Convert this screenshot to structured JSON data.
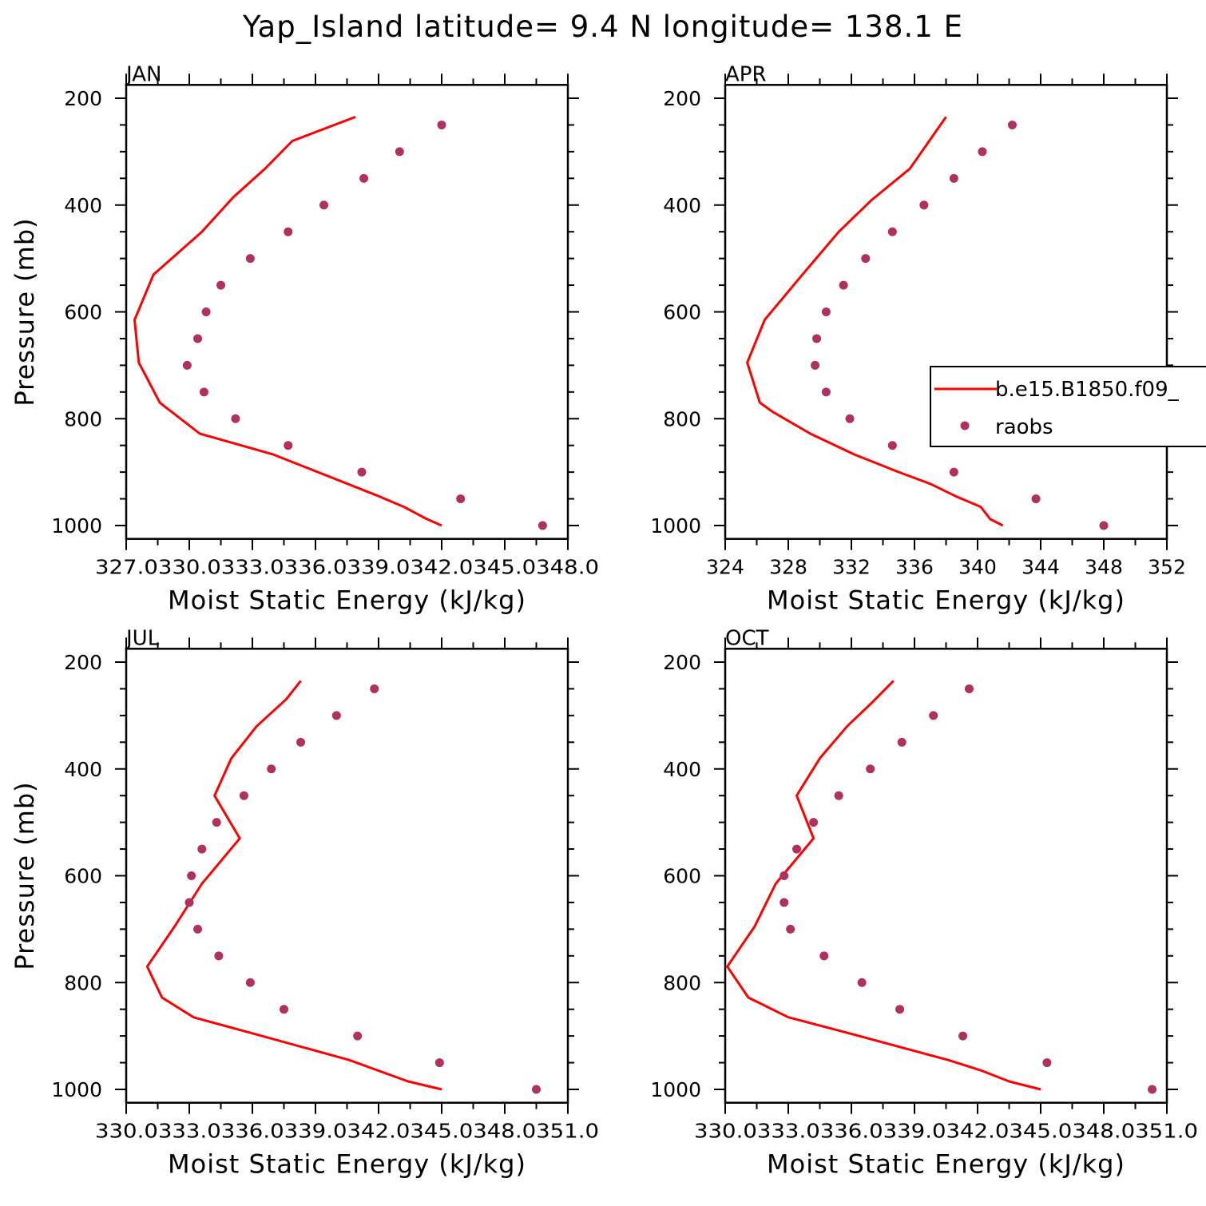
{
  "figure": {
    "title": "Yap_Island  latitude= 9.4 N longitude= 138.1 E"
  },
  "legend": {
    "model_label": "b.e15.B1850.f09_",
    "obs_label": "raobs",
    "model_color": "#ff0000",
    "obs_color": "#b03060"
  },
  "chart_data": [
    {
      "type": "line",
      "panel": "JAN",
      "xlabel": "Moist Static Energy (kJ/kg)",
      "ylabel": "Pressure (mb)",
      "xlim": [
        327,
        348
      ],
      "ylim": [
        1000,
        200
      ],
      "y_reversed": true,
      "y_ticks": [
        200,
        400,
        600,
        800,
        1000
      ],
      "x_ticks": [
        327,
        330,
        333,
        336,
        339,
        342,
        345,
        348
      ],
      "x_tick_labels": [
        "327.0",
        "330.0",
        "333.0",
        "336.0",
        "339.0",
        "342.0",
        "345.0",
        "348.0"
      ],
      "x_tick_text": "327.0330.0333.0336.0339.0342.0345.0348.0",
      "series": [
        {
          "name": "b.e15.B1850.f09_",
          "style": "line",
          "x": [
            342.0,
            341.3,
            340.2,
            339.0,
            334.0,
            330.5,
            328.6,
            327.6,
            327.4,
            328.3,
            330.6,
            332.1,
            333.6,
            334.9,
            337.9
          ],
          "y": [
            1000,
            988,
            965,
            945,
            867,
            828,
            770,
            695,
            615,
            530,
            450,
            385,
            332,
            280,
            235
          ]
        },
        {
          "name": "raobs",
          "style": "points",
          "x": [
            346.8,
            342.9,
            338.2,
            334.7,
            332.2,
            330.7,
            329.9,
            330.4,
            330.8,
            331.5,
            332.9,
            334.7,
            336.4,
            338.3,
            340.0,
            342.0
          ],
          "y": [
            1000,
            950,
            900,
            850,
            800,
            750,
            700,
            650,
            600,
            550,
            500,
            450,
            400,
            350,
            300,
            250
          ]
        }
      ]
    },
    {
      "type": "line",
      "panel": "APR",
      "xlabel": "Moist Static Energy (kJ/kg)",
      "ylabel": "",
      "xlim": [
        324,
        352
      ],
      "ylim": [
        1000,
        200
      ],
      "y_reversed": true,
      "y_ticks": [
        200,
        400,
        600,
        800,
        1000
      ],
      "x_ticks": [
        324,
        328,
        332,
        336,
        340,
        344,
        348,
        352
      ],
      "x_tick_labels": [
        "324",
        "328",
        "332",
        "336",
        "340",
        "344",
        "348",
        "352"
      ],
      "series": [
        {
          "name": "b.e15.B1850.f09_",
          "style": "line",
          "x": [
            341.6,
            340.8,
            340.2,
            338.6,
            337.0,
            335.0,
            332.2,
            329.4,
            327.0,
            326.2,
            325.4,
            326.5,
            328.9,
            331.2,
            333.3,
            335.7,
            338.0
          ],
          "y": [
            1000,
            988,
            965,
            945,
            922,
            900,
            867,
            828,
            787,
            770,
            695,
            615,
            530,
            450,
            390,
            332,
            235
          ]
        },
        {
          "name": "raobs",
          "style": "points",
          "x": [
            348.0,
            343.7,
            338.5,
            334.6,
            331.9,
            330.4,
            329.7,
            329.8,
            330.4,
            331.5,
            332.9,
            334.6,
            336.6,
            338.5,
            340.3,
            342.2
          ],
          "y": [
            1000,
            950,
            900,
            850,
            800,
            750,
            700,
            650,
            600,
            550,
            500,
            450,
            400,
            350,
            300,
            250
          ]
        }
      ]
    },
    {
      "type": "line",
      "panel": "JUL",
      "xlabel": "Moist Static Energy (kJ/kg)",
      "ylabel": "Pressure (mb)",
      "xlim": [
        330,
        351
      ],
      "ylim": [
        1000,
        200
      ],
      "y_reversed": true,
      "y_ticks": [
        200,
        400,
        600,
        800,
        1000
      ],
      "x_ticks": [
        330,
        333,
        336,
        339,
        342,
        345,
        348,
        351
      ],
      "x_tick_labels": [
        "330.0",
        "333.0",
        "336.0",
        "339.0",
        "342.0",
        "345.0",
        "348.0",
        "351.0"
      ],
      "x_tick_text": "330.0333.0336.0339.0342.0345.0348.0351.0",
      "series": [
        {
          "name": "b.e15.B1850.f09_",
          "style": "line",
          "x": [
            345.0,
            343.4,
            342.0,
            340.6,
            336.0,
            333.2,
            331.7,
            331.0,
            332.3,
            333.6,
            335.4,
            334.2,
            335.0,
            336.2,
            337.6,
            338.3
          ],
          "y": [
            1000,
            985,
            965,
            945,
            895,
            865,
            828,
            770,
            695,
            615,
            530,
            450,
            380,
            320,
            270,
            235
          ]
        },
        {
          "name": "raobs",
          "style": "points",
          "x": [
            349.5,
            344.9,
            341.0,
            337.5,
            335.9,
            334.4,
            333.4,
            333.0,
            333.1,
            333.6,
            334.3,
            335.6,
            336.9,
            338.3,
            340.0,
            341.8
          ],
          "y": [
            1000,
            950,
            900,
            850,
            800,
            750,
            700,
            650,
            600,
            550,
            500,
            450,
            400,
            350,
            300,
            250
          ]
        }
      ]
    },
    {
      "type": "line",
      "panel": "OCT",
      "xlabel": "Moist Static Energy (kJ/kg)",
      "ylabel": "",
      "xlim": [
        330,
        351
      ],
      "ylim": [
        1000,
        200
      ],
      "y_reversed": true,
      "y_ticks": [
        200,
        400,
        600,
        800,
        1000
      ],
      "x_ticks": [
        330,
        333,
        336,
        339,
        342,
        345,
        348,
        351
      ],
      "x_tick_labels": [
        "330.0",
        "333.0",
        "336.0",
        "339.0",
        "342.0",
        "345.0",
        "348.0",
        "351.0"
      ],
      "x_tick_text": "330.0333.0336.0339.0342.0345.0348.0351.0",
      "series": [
        {
          "name": "b.e15.B1850.f09_",
          "style": "line",
          "x": [
            345.0,
            343.5,
            342.2,
            340.6,
            335.9,
            333.0,
            331.1,
            330.1,
            331.4,
            332.4,
            334.2,
            333.4,
            334.5,
            335.8,
            337.0,
            338.0
          ],
          "y": [
            1000,
            985,
            965,
            945,
            895,
            865,
            828,
            770,
            695,
            615,
            530,
            450,
            380,
            320,
            275,
            235
          ]
        },
        {
          "name": "raobs",
          "style": "points",
          "x": [
            350.3,
            345.3,
            341.3,
            338.3,
            336.5,
            334.7,
            333.1,
            332.8,
            332.8,
            333.4,
            334.2,
            335.4,
            336.9,
            338.4,
            339.9,
            341.6
          ],
          "y": [
            1000,
            950,
            900,
            850,
            800,
            750,
            700,
            650,
            600,
            550,
            500,
            450,
            400,
            350,
            300,
            250
          ]
        }
      ]
    }
  ]
}
